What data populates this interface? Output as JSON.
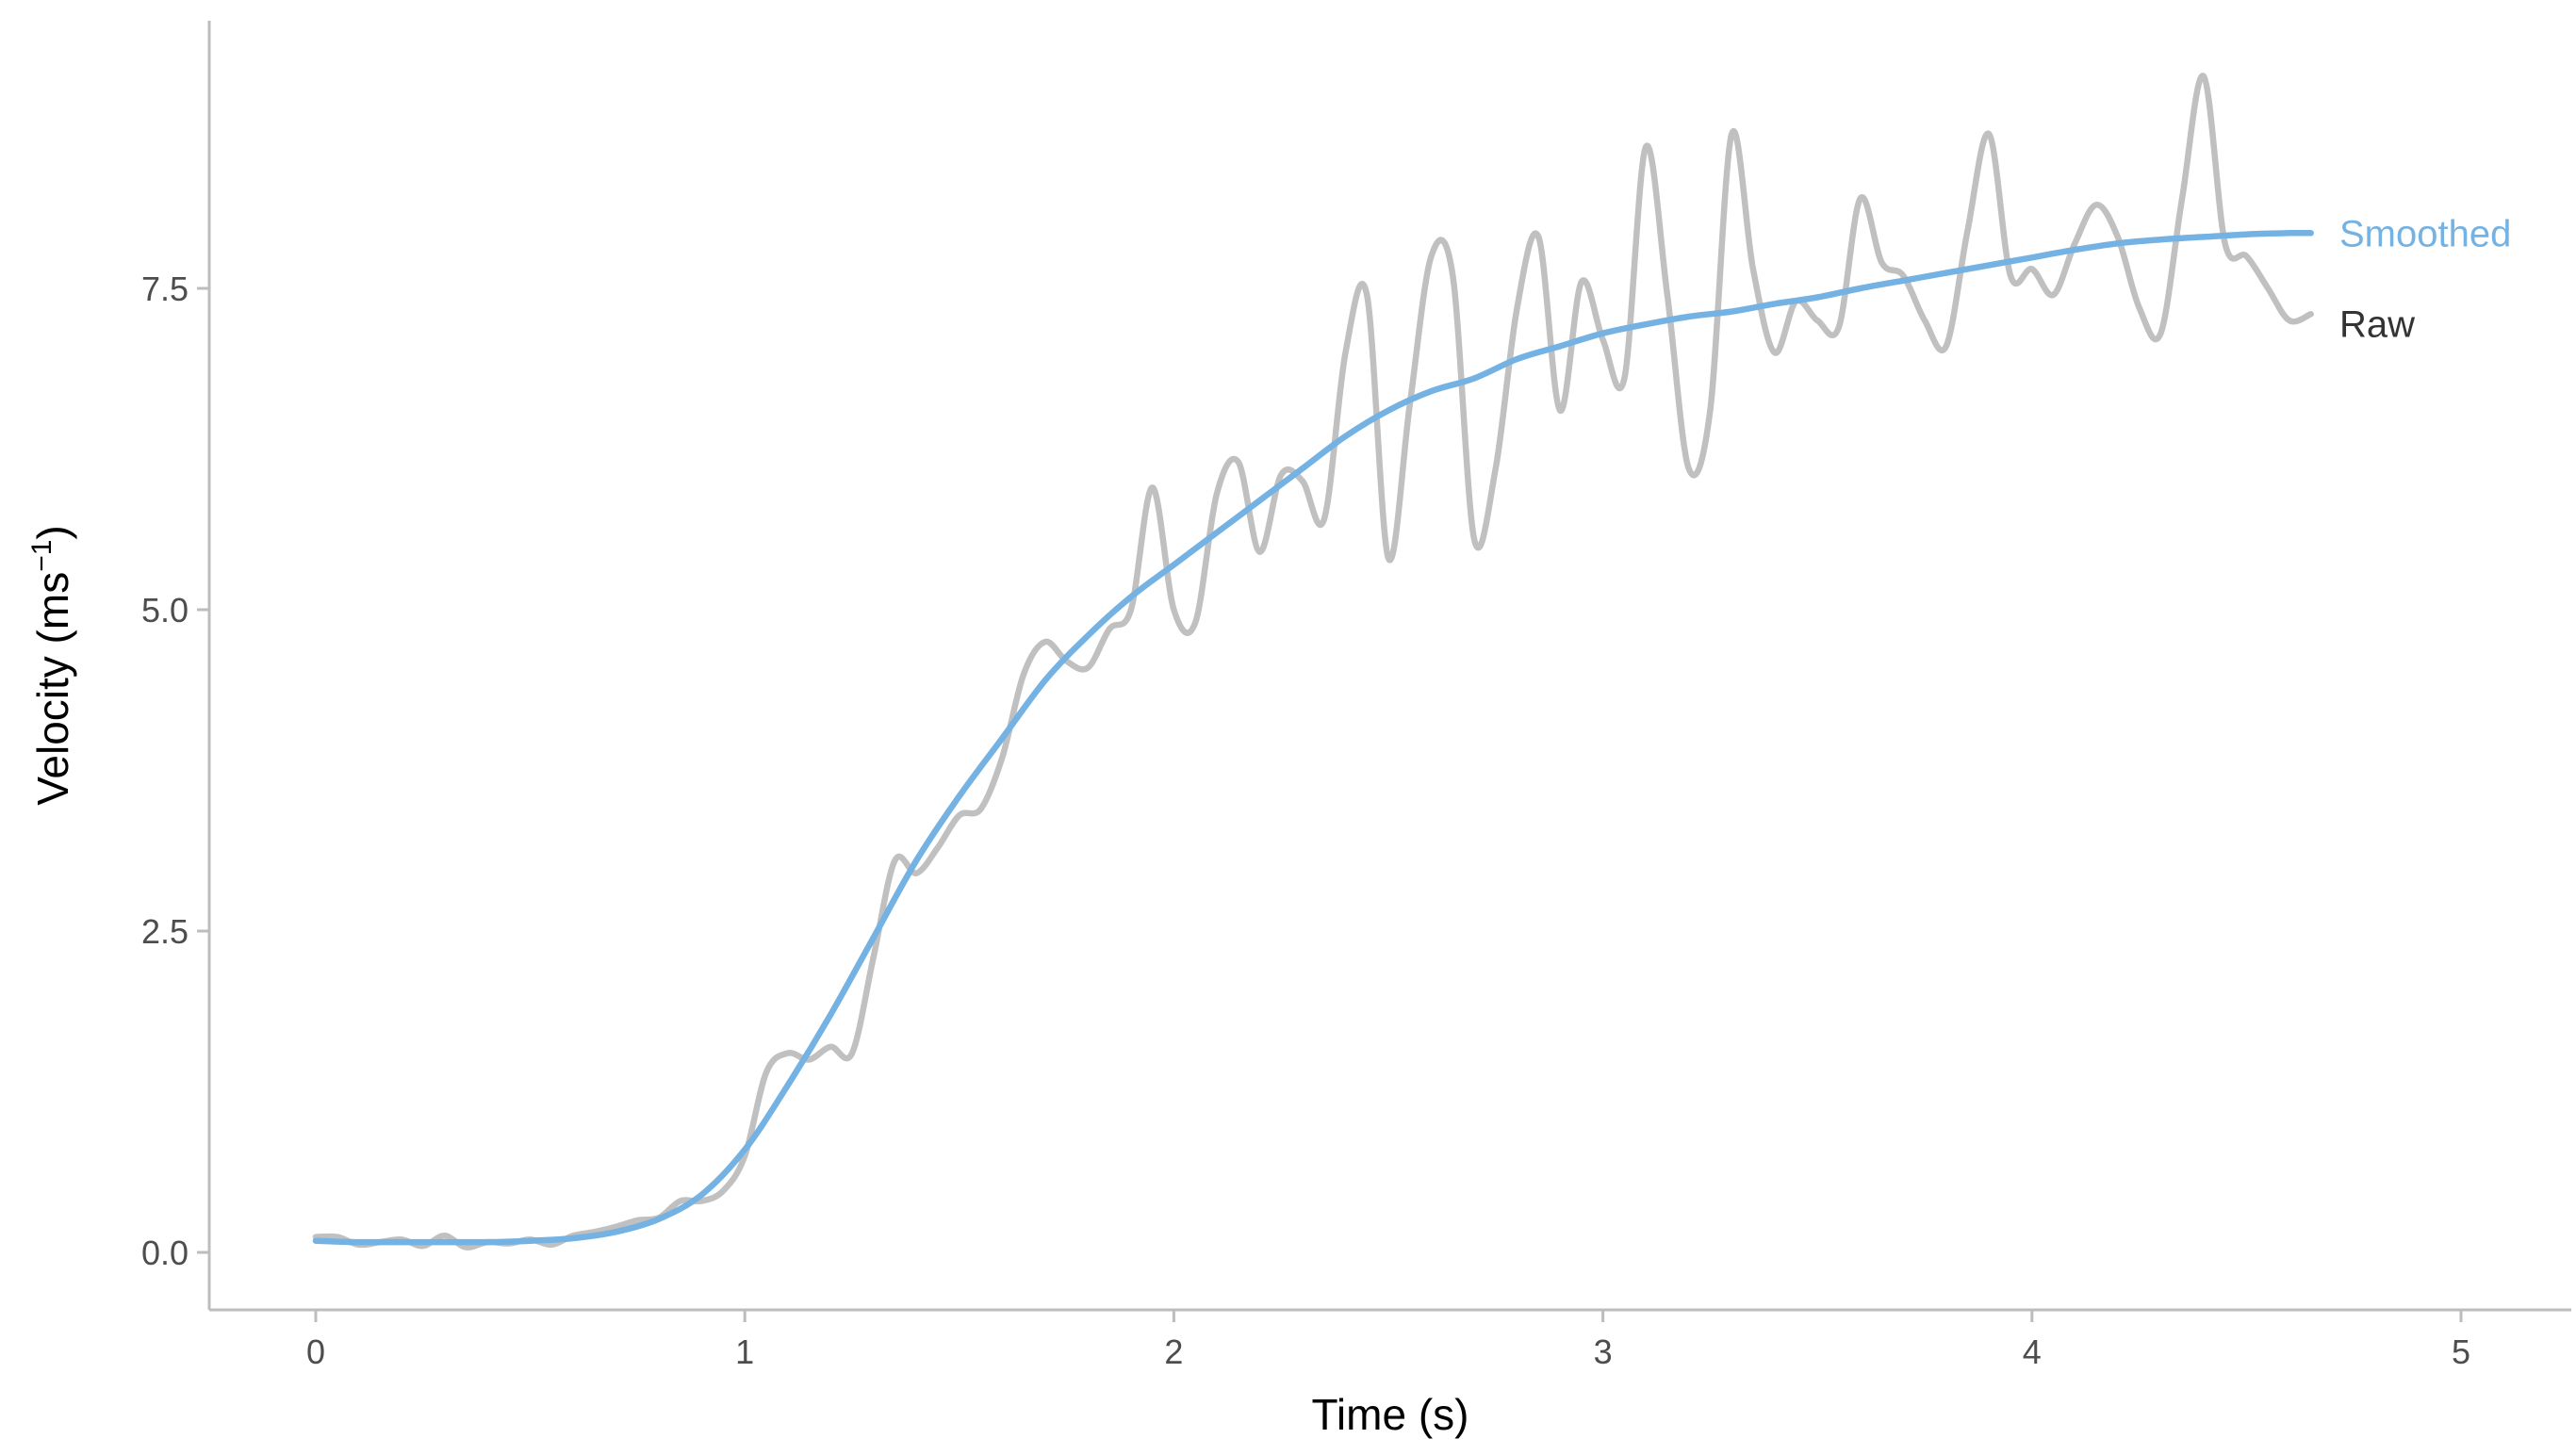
{
  "chart_data": {
    "type": "line",
    "xlabel": "Time (s)",
    "ylabel_main": "Velocity (ms",
    "ylabel_sup": "−1",
    "ylabel_close": ")",
    "xlim": [
      -0.25,
      5.25
    ],
    "ylim": [
      -0.45,
      9.55
    ],
    "xticks": [
      0,
      1,
      2,
      3,
      4,
      5
    ],
    "xtick_labels": [
      "0",
      "1",
      "2",
      "3",
      "4",
      "5"
    ],
    "yticks": [
      0.0,
      2.5,
      5.0,
      7.5
    ],
    "ytick_labels": [
      "0.0",
      "2.5",
      "5.0",
      "7.5"
    ],
    "grid": false,
    "legend": "direct labels at line ends (right)",
    "series": [
      {
        "name": "Raw",
        "color": "#c0c0c0",
        "label_color": "#333333",
        "x": [
          0.0,
          0.05,
          0.1,
          0.15,
          0.2,
          0.25,
          0.3,
          0.35,
          0.4,
          0.45,
          0.5,
          0.55,
          0.6,
          0.65,
          0.7,
          0.75,
          0.8,
          0.85,
          0.9,
          0.95,
          1.0,
          1.05,
          1.1,
          1.15,
          1.2,
          1.25,
          1.3,
          1.35,
          1.4,
          1.45,
          1.5,
          1.55,
          1.6,
          1.65,
          1.7,
          1.75,
          1.8,
          1.85,
          1.9,
          1.95,
          2.0,
          2.05,
          2.1,
          2.15,
          2.2,
          2.25,
          2.3,
          2.35,
          2.4,
          2.45,
          2.5,
          2.55,
          2.6,
          2.65,
          2.7,
          2.75,
          2.8,
          2.85,
          2.9,
          2.95,
          3.0,
          3.05,
          3.1,
          3.15,
          3.2,
          3.25,
          3.3,
          3.35,
          3.4,
          3.45,
          3.5,
          3.55,
          3.6,
          3.65,
          3.7,
          3.75,
          3.8,
          3.85,
          3.9,
          3.95,
          4.0,
          4.05,
          4.1,
          4.15,
          4.2,
          4.25,
          4.3,
          4.35,
          4.4,
          4.45,
          4.5,
          4.55,
          4.6,
          4.65
        ],
        "y": [
          0.12,
          0.12,
          0.06,
          0.08,
          0.1,
          0.05,
          0.13,
          0.04,
          0.08,
          0.07,
          0.1,
          0.06,
          0.13,
          0.16,
          0.2,
          0.25,
          0.27,
          0.4,
          0.4,
          0.48,
          0.75,
          1.4,
          1.55,
          1.5,
          1.6,
          1.55,
          2.3,
          3.05,
          2.95,
          3.15,
          3.4,
          3.45,
          3.85,
          4.5,
          4.75,
          4.6,
          4.55,
          4.85,
          5.0,
          5.95,
          5.0,
          4.9,
          5.9,
          6.15,
          5.45,
          6.05,
          6.0,
          5.7,
          7.0,
          7.45,
          5.4,
          6.6,
          7.75,
          7.6,
          5.55,
          6.1,
          7.35,
          7.9,
          6.55,
          7.55,
          7.1,
          6.8,
          8.6,
          7.45,
          6.1,
          6.55,
          8.7,
          7.65,
          7.0,
          7.4,
          7.25,
          7.2,
          8.2,
          7.7,
          7.6,
          7.25,
          7.05,
          7.95,
          8.7,
          7.6,
          7.65,
          7.45,
          7.85,
          8.15,
          7.9,
          7.35,
          7.15,
          8.2,
          9.15,
          7.85,
          7.75,
          7.5,
          7.25,
          7.3
        ]
      },
      {
        "name": "Smoothed",
        "color": "#74b2e3",
        "label_color": "#74b2e3",
        "x": [
          0.0,
          0.1,
          0.2,
          0.3,
          0.4,
          0.5,
          0.6,
          0.7,
          0.8,
          0.9,
          1.0,
          1.1,
          1.2,
          1.3,
          1.4,
          1.5,
          1.6,
          1.7,
          1.8,
          1.9,
          2.0,
          2.1,
          2.2,
          2.3,
          2.4,
          2.5,
          2.6,
          2.7,
          2.8,
          2.9,
          3.0,
          3.1,
          3.2,
          3.3,
          3.4,
          3.5,
          3.6,
          3.7,
          3.8,
          3.9,
          4.0,
          4.1,
          4.2,
          4.3,
          4.4,
          4.5,
          4.6,
          4.65
        ],
        "y": [
          0.09,
          0.08,
          0.08,
          0.08,
          0.08,
          0.09,
          0.11,
          0.16,
          0.26,
          0.45,
          0.8,
          1.3,
          1.85,
          2.45,
          3.05,
          3.55,
          4.0,
          4.45,
          4.8,
          5.1,
          5.35,
          5.6,
          5.85,
          6.1,
          6.35,
          6.55,
          6.7,
          6.8,
          6.95,
          7.05,
          7.15,
          7.22,
          7.28,
          7.32,
          7.38,
          7.43,
          7.5,
          7.56,
          7.62,
          7.68,
          7.74,
          7.8,
          7.85,
          7.88,
          7.9,
          7.92,
          7.93,
          7.93
        ]
      }
    ]
  }
}
